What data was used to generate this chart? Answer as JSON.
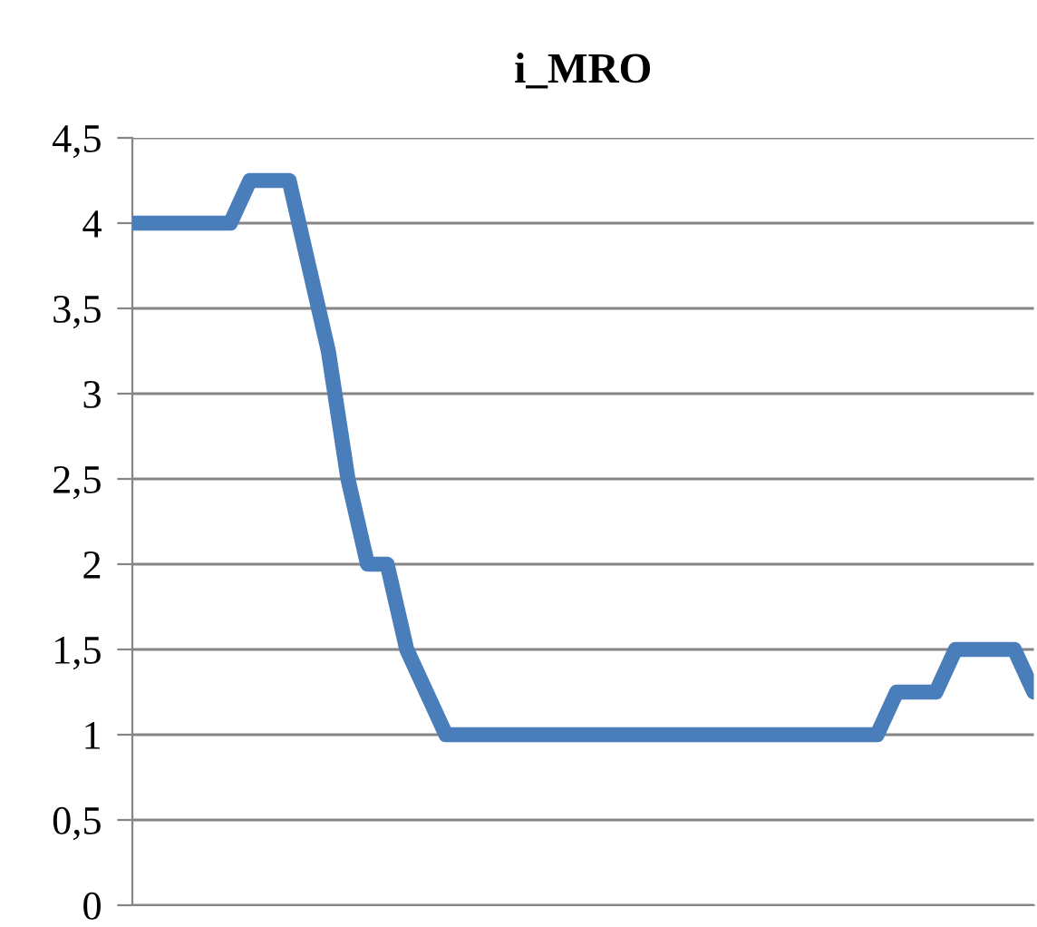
{
  "chart_data": {
    "type": "line",
    "title": "i_MRO",
    "categories": [
      null,
      null,
      null,
      null,
      null,
      null,
      null,
      null,
      null,
      null,
      null,
      null,
      null,
      null,
      null,
      null,
      null,
      null,
      null,
      null,
      null,
      null,
      null,
      null,
      null,
      null,
      null,
      null,
      null,
      null,
      null,
      null,
      null,
      null,
      null,
      null,
      null,
      null,
      null,
      null,
      null,
      null,
      null,
      null,
      null,
      null,
      null
    ],
    "series": [
      {
        "color": "#4a7ebb",
        "values": [
          4,
          4,
          4,
          4,
          4,
          4,
          4.25,
          4.25,
          4.25,
          3.75,
          3.25,
          2.5,
          2,
          2,
          1.5,
          1.25,
          1,
          1,
          1,
          1,
          1,
          1,
          1,
          1,
          1,
          1,
          1,
          1,
          1,
          1,
          1,
          1,
          1,
          1,
          1,
          1,
          1,
          1,
          1,
          1.25,
          1.25,
          1.25,
          1.5,
          1.5,
          1.5,
          1.5,
          1.25
        ]
      }
    ],
    "ylim": [
      0,
      4.5
    ],
    "yticks": [
      {
        "value": 0,
        "label": "0"
      },
      {
        "value": 0.5,
        "label": "0,5"
      },
      {
        "value": 1,
        "label": "1"
      },
      {
        "value": 1.5,
        "label": "1,5"
      },
      {
        "value": 2,
        "label": "2"
      },
      {
        "value": 2.5,
        "label": "2,5"
      },
      {
        "value": 3,
        "label": "3"
      },
      {
        "value": 3.5,
        "label": "3,5"
      },
      {
        "value": 4,
        "label": "4"
      },
      {
        "value": 4.5,
        "label": "4,5"
      }
    ],
    "grid": "y",
    "legend": false,
    "tick_labels": "y",
    "marker": "none",
    "line_style": "solid"
  }
}
